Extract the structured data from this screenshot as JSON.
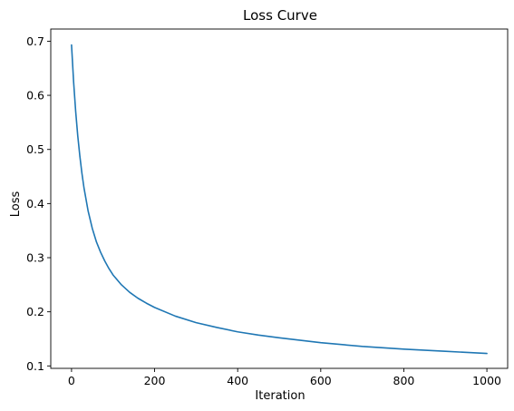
{
  "chart_data": {
    "type": "line",
    "title": "Loss Curve",
    "xlabel": "Iteration",
    "ylabel": "Loss",
    "xlim": [
      -50,
      1050
    ],
    "ylim": [
      0.0955,
      0.7225
    ],
    "xticks": [
      0,
      200,
      400,
      600,
      800,
      1000
    ],
    "yticks": [
      0.1,
      0.2,
      0.3,
      0.4,
      0.5,
      0.6,
      0.7
    ],
    "grid": false,
    "line_color": "#1f77b4",
    "series": [
      {
        "x": [
          0,
          5,
          10,
          15,
          20,
          25,
          30,
          40,
          50,
          60,
          70,
          80,
          90,
          100,
          120,
          140,
          160,
          180,
          200,
          250,
          300,
          350,
          400,
          450,
          500,
          600,
          700,
          800,
          900,
          1000
        ],
        "values": [
          0.693,
          0.625,
          0.57,
          0.525,
          0.488,
          0.456,
          0.429,
          0.386,
          0.354,
          0.329,
          0.31,
          0.294,
          0.28,
          0.268,
          0.25,
          0.236,
          0.225,
          0.216,
          0.208,
          0.192,
          0.18,
          0.171,
          0.163,
          0.157,
          0.152,
          0.143,
          0.136,
          0.131,
          0.127,
          0.123
        ]
      }
    ]
  }
}
